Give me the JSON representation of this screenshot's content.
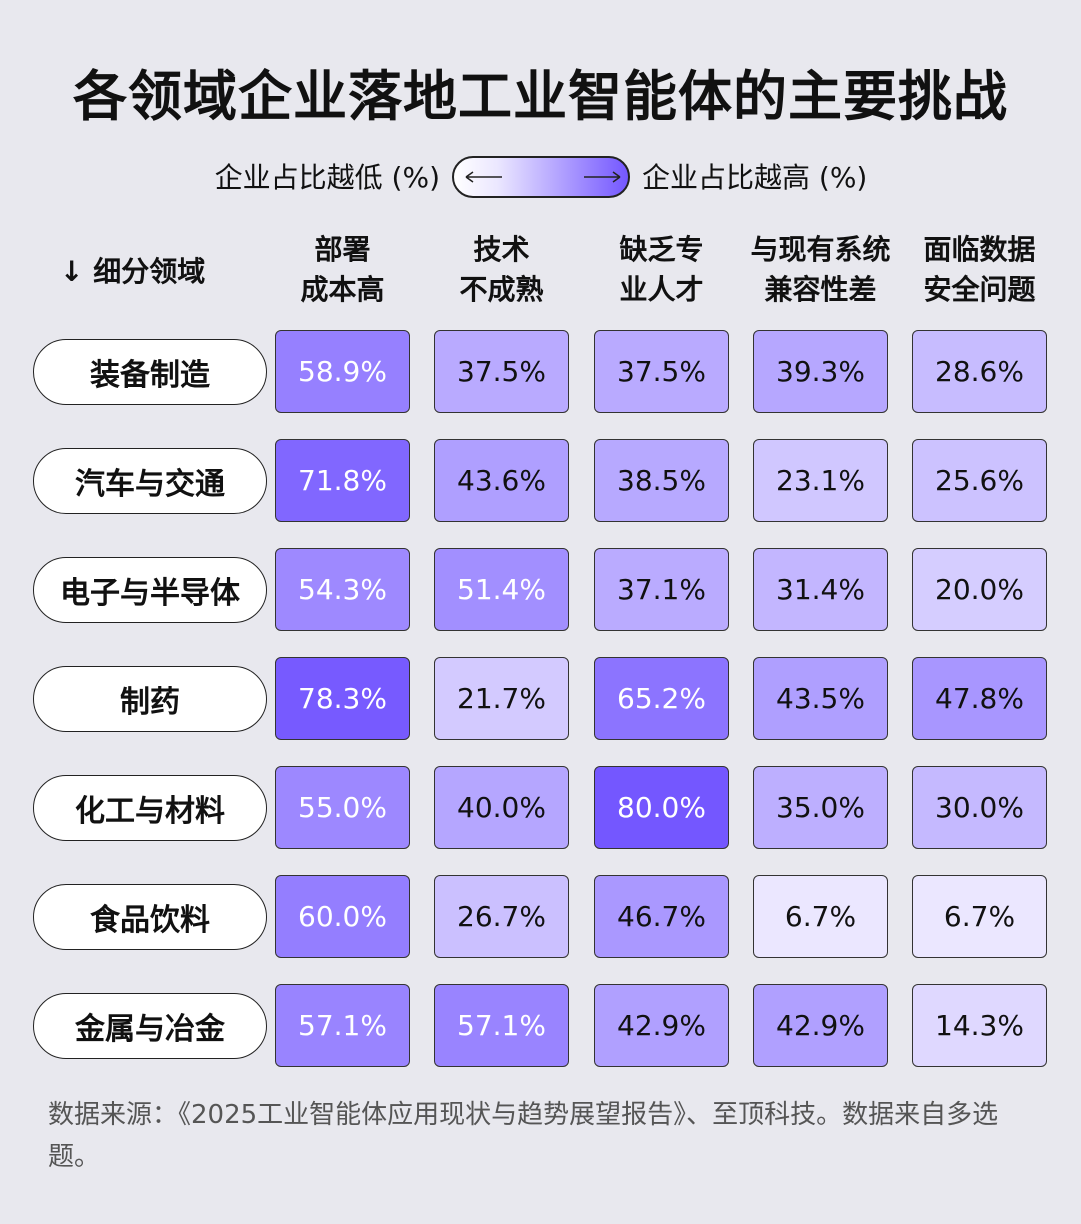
{
  "chart_data": {
    "type": "heatmap",
    "title": "各领域企业落地工业智能体的主要挑战",
    "legend_low": "企业占比越低 (%)",
    "legend_high": "企业占比越高 (%)",
    "row_header": "↓ 细分领域",
    "colors": [
      "#ebe7ff",
      "#7457ff"
    ],
    "categories": [
      [
        "部署",
        "成本高"
      ],
      [
        "技术",
        "不成熟"
      ],
      [
        "缺乏专",
        "业人才"
      ],
      [
        "与现有系统",
        "兼容性差"
      ],
      [
        "面临数据",
        "安全问题"
      ]
    ],
    "series": [
      {
        "name": "装备制造",
        "values": [
          58.9,
          37.5,
          37.5,
          39.3,
          28.6
        ],
        "value_labels": [
          "58.9%",
          "37.5%",
          "37.5%",
          "39.3%",
          "28.6%"
        ]
      },
      {
        "name": "汽车与交通",
        "values": [
          71.8,
          43.6,
          38.5,
          23.1,
          25.6
        ],
        "value_labels": [
          "71.8%",
          "43.6%",
          "38.5%",
          "23.1%",
          "25.6%"
        ]
      },
      {
        "name": "电子与半导体",
        "values": [
          54.3,
          51.4,
          37.1,
          31.4,
          20
        ],
        "value_labels": [
          "54.3%",
          "51.4%",
          "37.1%",
          "31.4%",
          "20.0%"
        ]
      },
      {
        "name": "制药",
        "values": [
          78.3,
          21.7,
          65.2,
          43.5,
          47.8
        ],
        "value_labels": [
          "78.3%",
          "21.7%",
          "65.2%",
          "43.5%",
          "47.8%"
        ]
      },
      {
        "name": "化工与材料",
        "values": [
          55,
          40,
          80,
          35,
          30
        ],
        "value_labels": [
          "55.0%",
          "40.0%",
          "80.0%",
          "35.0%",
          "30.0%"
        ]
      },
      {
        "name": "食品饮料",
        "values": [
          60,
          26.7,
          46.7,
          6.7,
          6.7
        ],
        "value_labels": [
          "60.0%",
          "26.7%",
          "46.7%",
          "6.7%",
          "6.7%"
        ]
      },
      {
        "name": "金属与冶金",
        "values": [
          57.1,
          57.1,
          42.9,
          42.9,
          14.3
        ],
        "value_labels": [
          "57.1%",
          "57.1%",
          "42.9%",
          "42.9%",
          "14.3%"
        ]
      }
    ],
    "source": "数据来源：《2025工业智能体应用现状与趋势展望报告》、至顶科技。数据来自多选题。"
  }
}
